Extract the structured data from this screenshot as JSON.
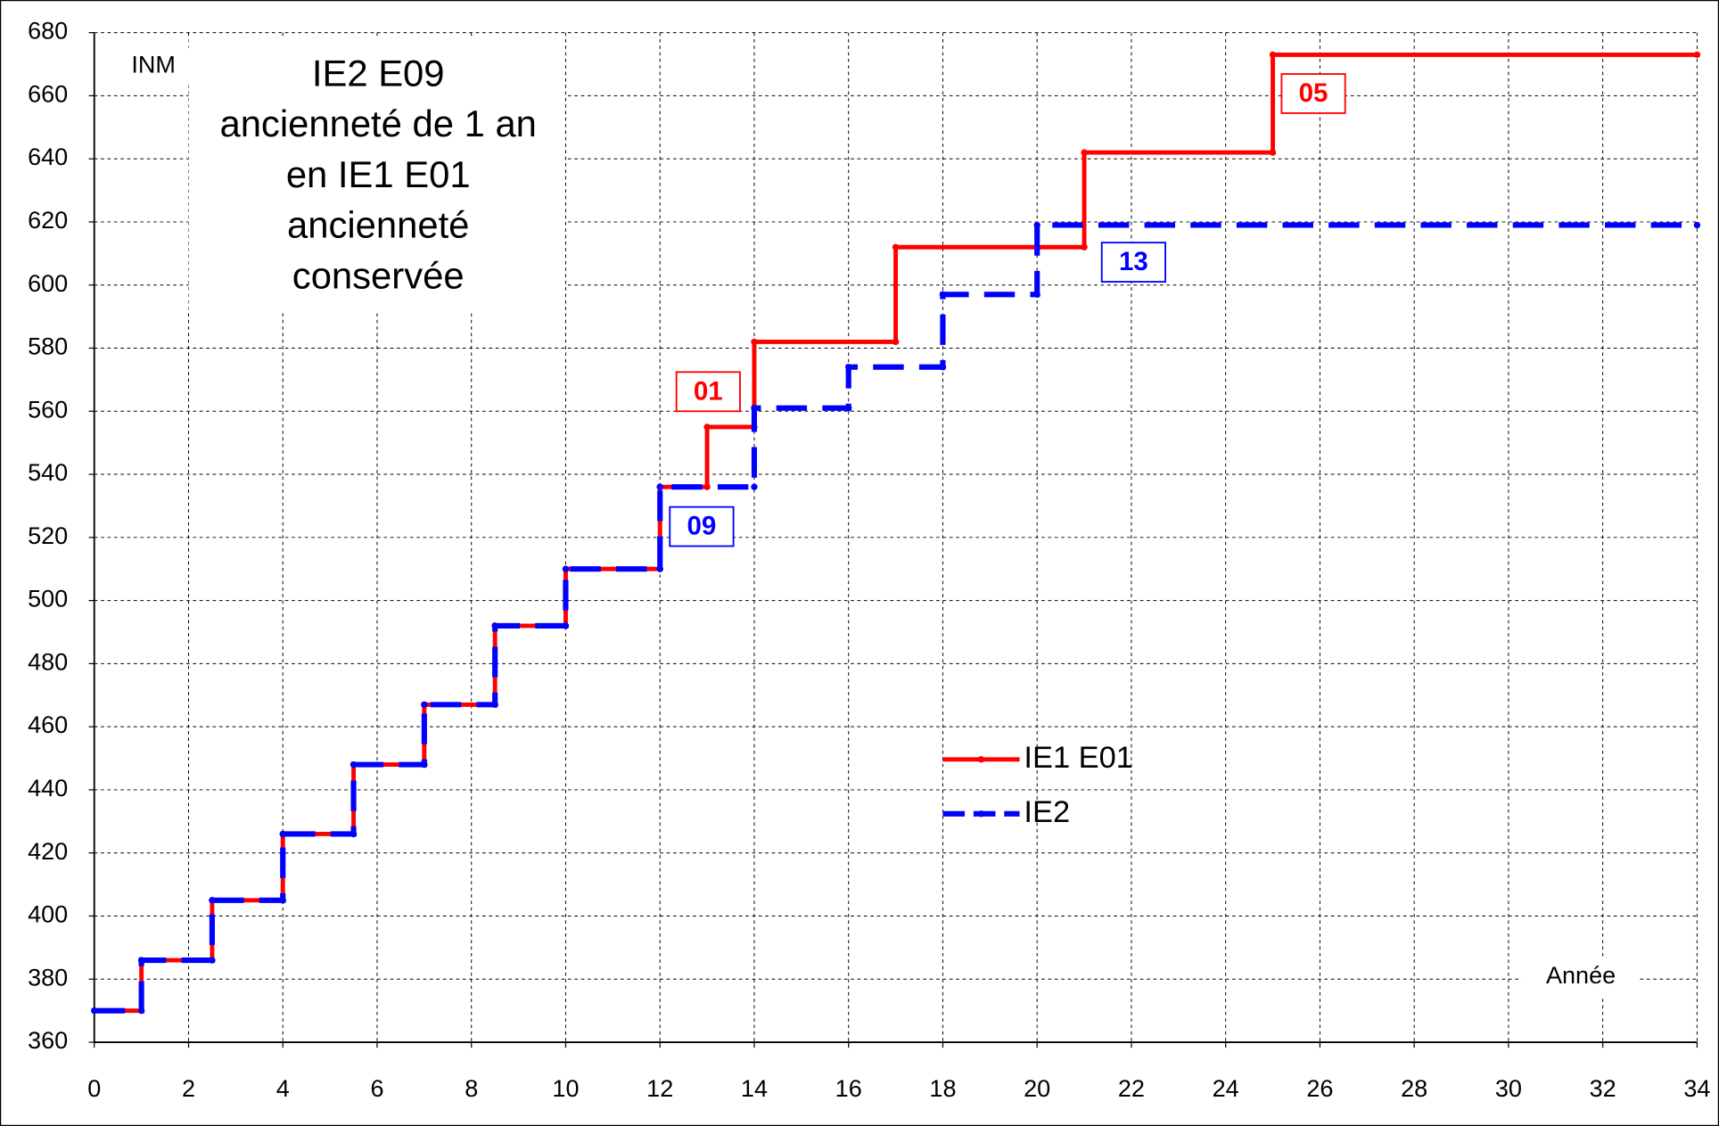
{
  "chart_data": {
    "type": "step-line",
    "title": [
      "IE2 E09",
      "ancienneté de 1 an",
      "en IE1 E01",
      "ancienneté",
      "conservée"
    ],
    "ylabel": "INM",
    "xlabel": "Année",
    "xlim": [
      0,
      34
    ],
    "xticks": [
      0,
      2,
      4,
      6,
      8,
      10,
      12,
      14,
      16,
      18,
      20,
      22,
      24,
      26,
      28,
      30,
      32,
      34
    ],
    "ylim": [
      360,
      680
    ],
    "yticks": [
      360,
      380,
      400,
      420,
      440,
      460,
      480,
      500,
      520,
      540,
      560,
      580,
      600,
      620,
      640,
      660,
      680
    ],
    "grid": true,
    "series": [
      {
        "name": "IE1 E01",
        "color": "#ff0000",
        "dashed": false,
        "x": [
          0,
          1,
          1,
          2.5,
          2.5,
          4,
          4,
          5.5,
          5.5,
          7,
          7,
          8.5,
          8.5,
          10,
          10,
          12,
          12,
          13,
          13,
          14,
          14,
          17,
          17,
          21,
          21,
          25,
          25,
          34
        ],
        "values": [
          370,
          370,
          386,
          386,
          405,
          405,
          426,
          426,
          448,
          448,
          467,
          467,
          492,
          492,
          510,
          510,
          536,
          536,
          555,
          555,
          582,
          582,
          612,
          612,
          642,
          642,
          673,
          673
        ]
      },
      {
        "name": "IE2",
        "color": "#0000ff",
        "dashed": true,
        "x": [
          0,
          1,
          1,
          2.5,
          2.5,
          4,
          4,
          5.5,
          5.5,
          7,
          7,
          8.5,
          8.5,
          10,
          10,
          12,
          12,
          14,
          14,
          16,
          16,
          18,
          18,
          20,
          20,
          34
        ],
        "values": [
          370,
          370,
          386,
          386,
          405,
          405,
          426,
          426,
          448,
          448,
          467,
          467,
          492,
          492,
          510,
          510,
          536,
          536,
          561,
          561,
          574,
          574,
          597,
          597,
          619,
          619
        ]
      }
    ],
    "annotations": [
      {
        "text": "01",
        "color": "#ff0000"
      },
      {
        "text": "05",
        "color": "#ff0000"
      },
      {
        "text": "09",
        "color": "#0000ff"
      },
      {
        "text": "13",
        "color": "#0000ff"
      }
    ]
  }
}
